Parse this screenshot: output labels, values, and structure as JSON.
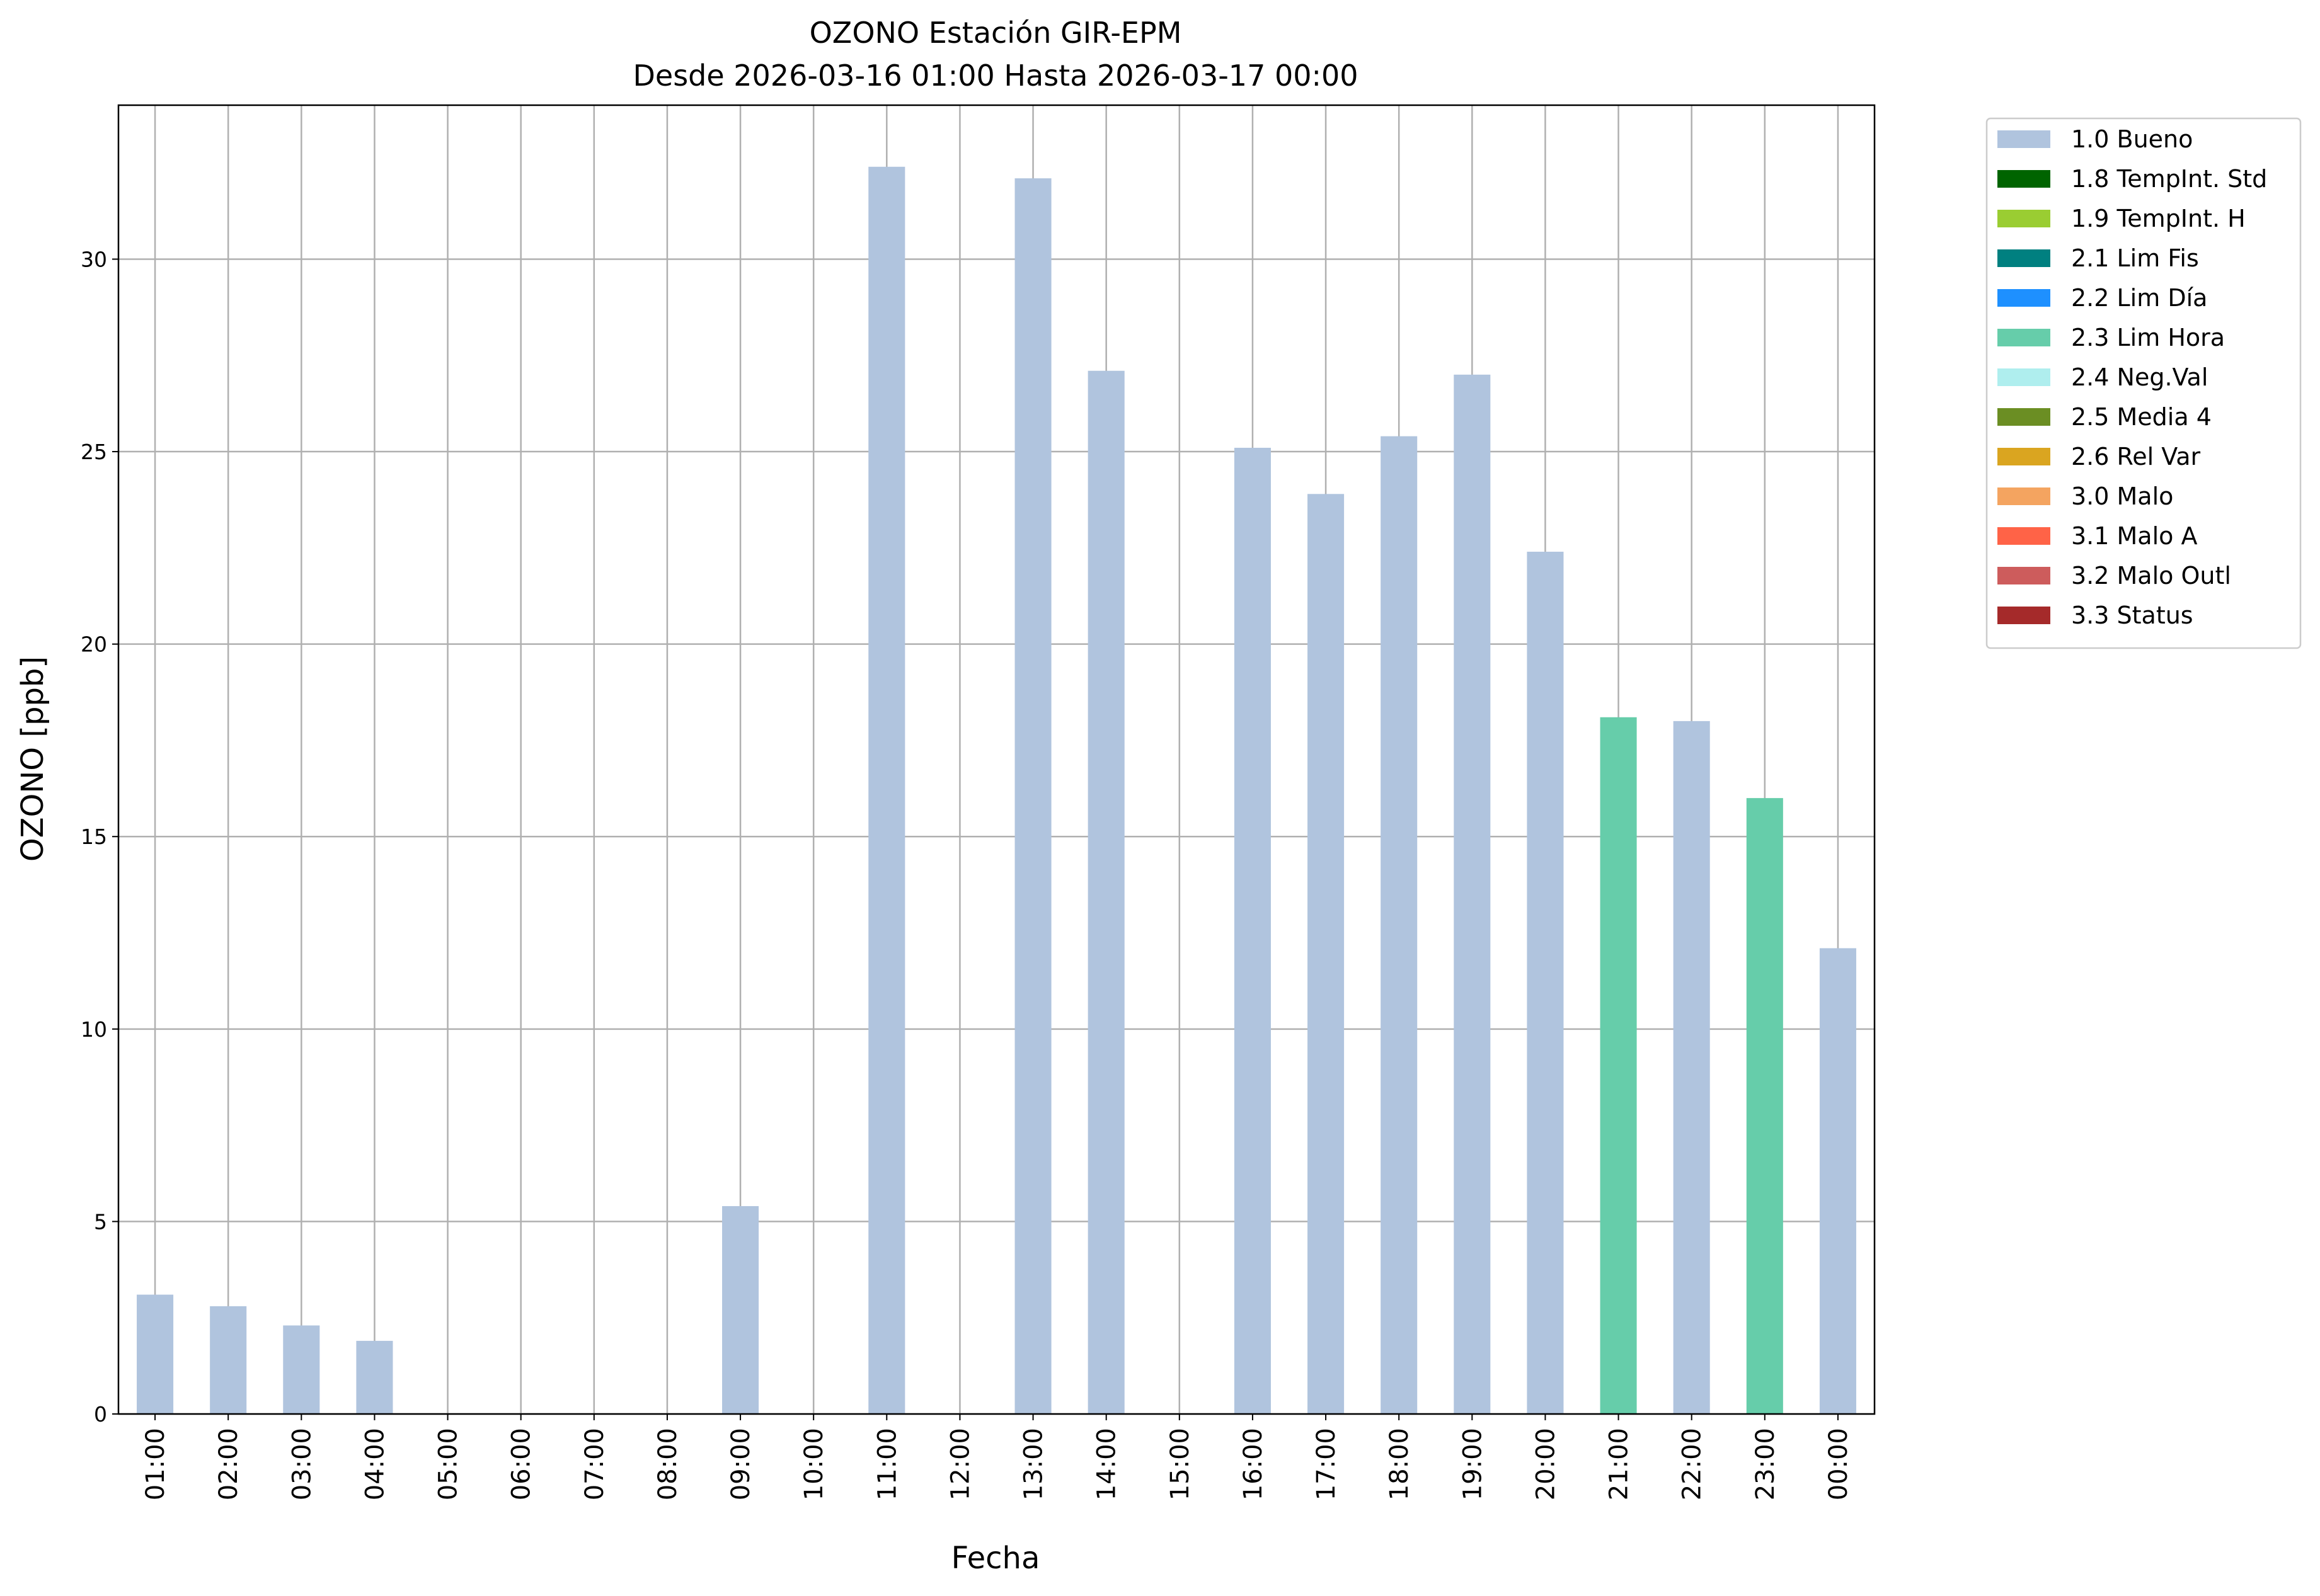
{
  "chart_data": {
    "type": "bar",
    "title": "OZONO Estación GIR-EPM",
    "subtitle": "Desde 2026-03-16 01:00 Hasta 2026-03-17 00:00",
    "x_label": "Fecha",
    "y_label": "OZONO [ppb]",
    "categories": [
      "01:00",
      "02:00",
      "03:00",
      "04:00",
      "05:00",
      "06:00",
      "07:00",
      "08:00",
      "09:00",
      "10:00",
      "11:00",
      "12:00",
      "13:00",
      "14:00",
      "15:00",
      "16:00",
      "17:00",
      "18:00",
      "19:00",
      "20:00",
      "21:00",
      "22:00",
      "23:00",
      "00:00"
    ],
    "series": [
      {
        "name": "1.0 Bueno",
        "color": "#b0c4de",
        "values": [
          3.1,
          2.8,
          2.3,
          1.9,
          null,
          null,
          null,
          null,
          5.4,
          null,
          32.4,
          null,
          32.1,
          27.1,
          null,
          25.1,
          23.9,
          25.4,
          27.0,
          22.4,
          null,
          18.0,
          null,
          12.1
        ]
      },
      {
        "name": "1.8 TempInt. Std",
        "color": "#006400",
        "values": [
          null,
          null,
          null,
          null,
          null,
          null,
          null,
          null,
          null,
          null,
          null,
          null,
          null,
          null,
          null,
          null,
          null,
          null,
          null,
          null,
          null,
          null,
          null,
          null
        ]
      },
      {
        "name": "1.9 TempInt. H",
        "color": "#9acd32",
        "values": [
          null,
          null,
          null,
          null,
          null,
          null,
          null,
          null,
          null,
          null,
          null,
          null,
          null,
          null,
          null,
          null,
          null,
          null,
          null,
          null,
          null,
          null,
          null,
          null
        ]
      },
      {
        "name": "2.1 Lim Fis",
        "color": "#008080",
        "values": [
          null,
          null,
          null,
          null,
          null,
          null,
          null,
          null,
          null,
          null,
          null,
          null,
          null,
          null,
          null,
          null,
          null,
          null,
          null,
          null,
          null,
          null,
          null,
          null
        ]
      },
      {
        "name": "2.2 Lim Día",
        "color": "#1e90ff",
        "values": [
          null,
          null,
          null,
          null,
          null,
          null,
          null,
          null,
          null,
          null,
          null,
          null,
          null,
          null,
          null,
          null,
          null,
          null,
          null,
          null,
          null,
          null,
          null,
          null
        ]
      },
      {
        "name": "2.3 Lim Hora",
        "color": "#66cdaa",
        "values": [
          null,
          null,
          null,
          null,
          null,
          null,
          null,
          null,
          null,
          null,
          null,
          null,
          null,
          null,
          null,
          null,
          null,
          null,
          null,
          null,
          18.1,
          null,
          16.0,
          null
        ]
      },
      {
        "name": "2.4 Neg.Val",
        "color": "#afeeee",
        "values": [
          null,
          null,
          null,
          null,
          null,
          null,
          null,
          null,
          null,
          null,
          null,
          null,
          null,
          null,
          null,
          null,
          null,
          null,
          null,
          null,
          null,
          null,
          null,
          null
        ]
      },
      {
        "name": "2.5 Media 4",
        "color": "#6b8e23",
        "values": [
          null,
          null,
          null,
          null,
          null,
          null,
          null,
          null,
          null,
          null,
          null,
          null,
          null,
          null,
          null,
          null,
          null,
          null,
          null,
          null,
          null,
          null,
          null,
          null
        ]
      },
      {
        "name": "2.6 Rel Var",
        "color": "#daa520",
        "values": [
          null,
          null,
          null,
          null,
          null,
          null,
          null,
          null,
          null,
          null,
          null,
          null,
          null,
          null,
          null,
          null,
          null,
          null,
          null,
          null,
          null,
          null,
          null,
          null
        ]
      },
      {
        "name": "3.0 Malo",
        "color": "#f4a460",
        "values": [
          null,
          null,
          null,
          null,
          null,
          null,
          null,
          null,
          null,
          null,
          null,
          null,
          null,
          null,
          null,
          null,
          null,
          null,
          null,
          null,
          null,
          null,
          null,
          null
        ]
      },
      {
        "name": "3.1 Malo A",
        "color": "#ff6347",
        "values": [
          null,
          null,
          null,
          null,
          null,
          null,
          null,
          null,
          null,
          null,
          null,
          null,
          null,
          null,
          null,
          null,
          null,
          null,
          null,
          null,
          null,
          null,
          null,
          null
        ]
      },
      {
        "name": "3.2 Malo Outl",
        "color": "#cd5c5c",
        "values": [
          null,
          null,
          null,
          null,
          null,
          null,
          null,
          null,
          null,
          null,
          null,
          null,
          null,
          null,
          null,
          null,
          null,
          null,
          null,
          null,
          null,
          null,
          null,
          null
        ]
      },
      {
        "name": "3.3 Status",
        "color": "#a52a2a",
        "values": [
          null,
          null,
          null,
          null,
          null,
          null,
          null,
          null,
          null,
          null,
          null,
          null,
          null,
          null,
          null,
          null,
          null,
          null,
          null,
          null,
          null,
          null,
          null,
          null
        ]
      }
    ],
    "ylim": [
      0,
      34
    ],
    "yticks": [
      0,
      5,
      10,
      15,
      20,
      25,
      30
    ],
    "grid": true,
    "legend": "outside-right"
  }
}
